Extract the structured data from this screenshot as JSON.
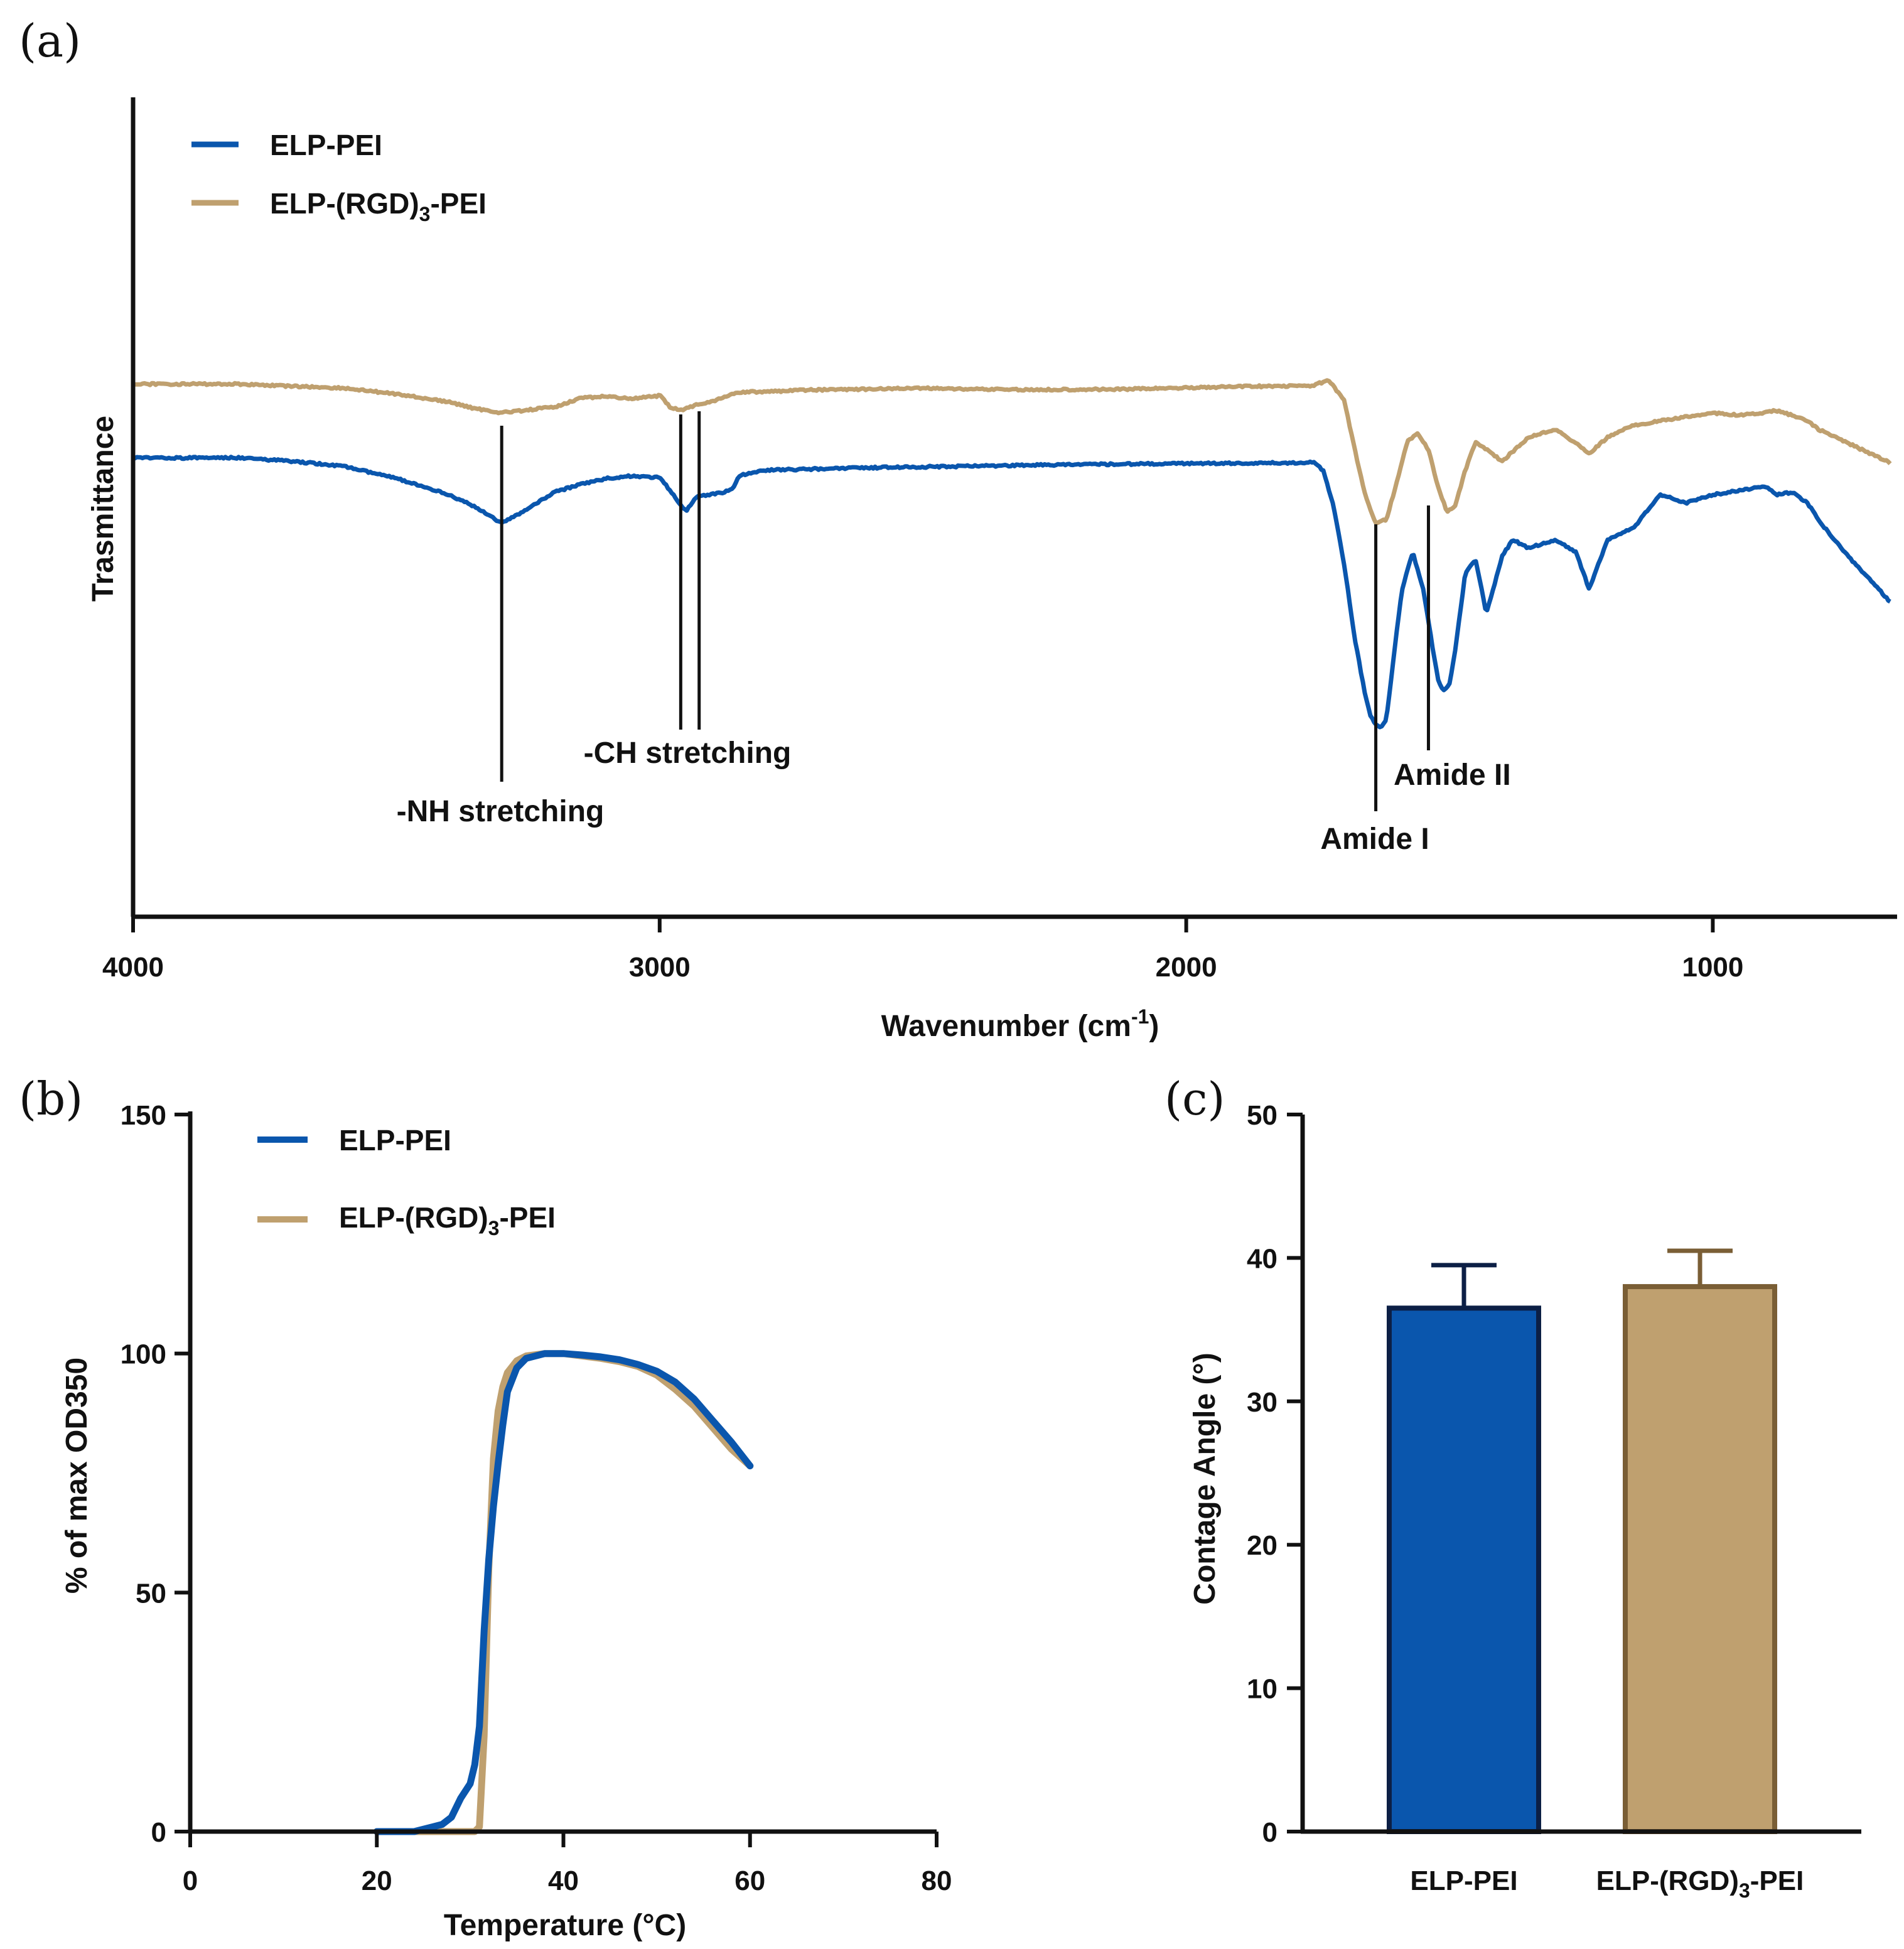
{
  "colors": {
    "elp_pei": "#0a56ad",
    "elp_rgd_pei": "#bfa06f",
    "elp_rgd_pei_edge": "#7a5e35",
    "bar_edge_blue": "#0c1f45",
    "axis": "#111111"
  },
  "panels": {
    "a": "(a)",
    "b": "(b)",
    "c": "(c)"
  },
  "chart_data": [
    {
      "id": "a",
      "type": "line",
      "title": "",
      "xlabel_main": "Wavenumber (cm",
      "xlabel_sup": "-1",
      "xlabel_end": ")",
      "ylabel": "Trasmittance",
      "xlim": [
        4000,
        650
      ],
      "ylim": [
        0,
        100
      ],
      "xticks": [
        4000,
        3000,
        2000,
        1000
      ],
      "legend": {
        "s1_main": "ELP-PEI",
        "s2_main": "ELP-(RGD)",
        "s2_sub": "3",
        "s2_end": "-PEI",
        "position": "top-left"
      },
      "series": [
        {
          "name": "ELP-(RGD)3-PEI",
          "color_key": "elp_rgd_pei",
          "x": [
            4000,
            3800,
            3600,
            3500,
            3400,
            3350,
            3300,
            3200,
            3150,
            3100,
            3050,
            3000,
            2980,
            2960,
            2930,
            2900,
            2880,
            2850,
            2700,
            2500,
            2300,
            2100,
            1900,
            1760,
            1730,
            1700,
            1680,
            1660,
            1640,
            1620,
            1600,
            1580,
            1560,
            1540,
            1520,
            1505,
            1490,
            1470,
            1450,
            1430,
            1400,
            1350,
            1300,
            1260,
            1235,
            1200,
            1150,
            1100,
            1050,
            1000,
            950,
            900,
            880,
            850,
            820,
            800,
            750,
            700,
            650
          ],
          "values": [
            65,
            65,
            64.5,
            63.8,
            62.8,
            62,
            61.5,
            62.2,
            63.3,
            63.5,
            63.2,
            63.6,
            62.2,
            61.8,
            62.5,
            62.9,
            63.4,
            64,
            64.3,
            64.5,
            64.3,
            64.4,
            64.7,
            64.8,
            65.5,
            63,
            57,
            51.5,
            48,
            48.5,
            53,
            58,
            59,
            57,
            52,
            49.5,
            50,
            54.5,
            58,
            57,
            55.6,
            58.5,
            59.5,
            57.8,
            56.5,
            58.5,
            60,
            60.5,
            61,
            61.5,
            61.2,
            61.5,
            61.8,
            61.2,
            60.5,
            59.5,
            58,
            56.5,
            55
          ]
        },
        {
          "name": "ELP-PEI",
          "color_key": "elp_pei",
          "x": [
            4000,
            3800,
            3700,
            3600,
            3500,
            3400,
            3350,
            3300,
            3250,
            3200,
            3150,
            3100,
            3050,
            3000,
            2980,
            2960,
            2950,
            2930,
            2900,
            2880,
            2860,
            2850,
            2800,
            2600,
            2400,
            2200,
            2000,
            1800,
            1760,
            1740,
            1720,
            1700,
            1680,
            1660,
            1650,
            1640,
            1630,
            1620,
            1600,
            1590,
            1570,
            1550,
            1530,
            1520,
            1510,
            1500,
            1490,
            1470,
            1450,
            1430,
            1400,
            1380,
            1350,
            1300,
            1260,
            1235,
            1200,
            1150,
            1100,
            1050,
            1000,
            950,
            900,
            880,
            850,
            820,
            800,
            750,
            700,
            650
          ],
          "values": [
            56,
            56,
            55.6,
            55,
            53.5,
            51.5,
            50,
            48,
            49.8,
            51.8,
            52.8,
            53.5,
            53.8,
            53.6,
            52,
            50.3,
            49.5,
            51.2,
            51.6,
            51.8,
            52.3,
            53.8,
            54.5,
            54.8,
            55,
            55.2,
            55.3,
            55.4,
            55.5,
            54.5,
            50,
            43,
            34,
            27,
            24.5,
            23.5,
            23,
            24,
            35,
            40,
            44.5,
            40,
            32,
            28.5,
            27.5,
            28.5,
            32,
            42,
            43.5,
            37,
            44,
            46,
            45,
            46,
            44.5,
            40,
            46,
            47.5,
            51.5,
            50.5,
            51.5,
            52,
            52.5,
            51.5,
            51.8,
            50.5,
            48.5,
            44.5,
            41,
            37.5
          ]
        }
      ],
      "annotations": [
        {
          "label": "-NH stretching",
          "x": 3300
        },
        {
          "label": "-CH stretching",
          "x": 2960
        },
        {
          "label": "",
          "x": 2925
        },
        {
          "label": "Amide I",
          "x": 1640
        },
        {
          "label": "Amide II",
          "x": 1540
        }
      ]
    },
    {
      "id": "b",
      "type": "line",
      "title": "",
      "xlabel": "Temperature (°C)",
      "ylabel": "% of  max OD350",
      "xlim": [
        0,
        80
      ],
      "ylim": [
        0,
        150
      ],
      "xticks": [
        0,
        20,
        40,
        60,
        80
      ],
      "yticks": [
        0,
        50,
        100,
        150
      ],
      "legend": {
        "s1_main": "ELP-PEI",
        "s2_main": "ELP-(RGD)",
        "s2_sub": "3",
        "s2_end": "-PEI",
        "position": "top-left"
      },
      "series": [
        {
          "name": "ELP-(RGD)3-PEI",
          "color_key": "elp_rgd_pei",
          "x": [
            20,
            22,
            24,
            26,
            28,
            29,
            30,
            30.5,
            31,
            31.5,
            32,
            32.5,
            33,
            33.5,
            34,
            35,
            36,
            38,
            40,
            42,
            44,
            46,
            48,
            50,
            52,
            54,
            56,
            58,
            60
          ],
          "values": [
            0,
            0,
            0,
            0,
            0,
            0,
            0,
            0,
            1,
            20,
            55,
            78,
            88,
            93,
            96,
            98.5,
            99.5,
            100,
            100,
            99.5,
            99,
            98.3,
            97.3,
            95.5,
            92.5,
            89,
            84.5,
            80,
            76.5
          ]
        },
        {
          "name": "ELP-PEI",
          "color_key": "elp_pei",
          "x": [
            20,
            22,
            24,
            26,
            27,
            28,
            29,
            30,
            30.5,
            31,
            31.5,
            32,
            32.5,
            33,
            33.5,
            34,
            35,
            36,
            38,
            40,
            42,
            44,
            46,
            48,
            50,
            52,
            54,
            56,
            58,
            60
          ],
          "values": [
            0,
            0,
            0,
            1,
            1.5,
            3,
            7,
            10,
            14,
            22,
            42,
            57,
            68,
            77,
            85,
            92,
            97,
            99,
            100,
            100,
            99.7,
            99.3,
            98.7,
            97.7,
            96.3,
            94,
            90.5,
            86,
            81.5,
            76.5
          ]
        }
      ]
    },
    {
      "id": "c",
      "type": "bar",
      "title": "",
      "xlabel": "",
      "ylabel": "Contage Angle (°)",
      "ylim": [
        0,
        50
      ],
      "yticks": [
        0,
        10,
        20,
        30,
        40,
        50
      ],
      "categories": [
        {
          "main": "ELP-PEI",
          "sub": "",
          "end": ""
        },
        {
          "main": "ELP-(RGD)",
          "sub": "3",
          "end": "-PEI"
        }
      ],
      "values": [
        36.5,
        38
      ],
      "errors": [
        3,
        2.5
      ],
      "fill_keys": [
        "elp_pei",
        "elp_rgd_pei"
      ],
      "edge_keys": [
        "bar_edge_blue",
        "elp_rgd_pei_edge"
      ]
    }
  ]
}
